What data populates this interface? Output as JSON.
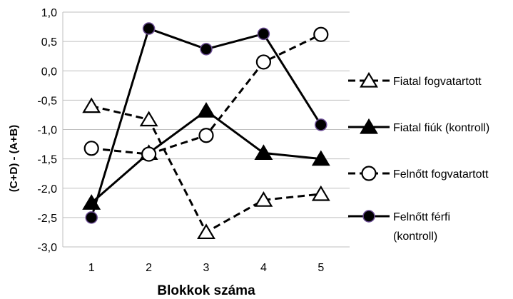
{
  "chart_data": {
    "type": "line",
    "xlabel": "Blokkok száma",
    "ylabel": "(C+D) - (A+B)",
    "x": [
      1,
      2,
      3,
      4,
      5
    ],
    "xticks": [
      "1",
      "2",
      "3",
      "4",
      "5"
    ],
    "ylim": [
      -3.0,
      1.0
    ],
    "yticks": [
      "1,0",
      "0,5",
      "0,0",
      "-0,5",
      "-1,0",
      "-1,5",
      "-2,0",
      "-2,5",
      "-3,0"
    ],
    "ytick_values": [
      1.0,
      0.5,
      0.0,
      -0.5,
      -1.0,
      -1.5,
      -2.0,
      -2.5,
      -3.0
    ],
    "grid": "horizontal",
    "legend_position": "right",
    "series": [
      {
        "name": "Fiatal fogvatartott",
        "values": [
          -0.6,
          -0.83,
          -2.75,
          -2.2,
          -2.1
        ],
        "line": "dashed",
        "marker": "open-triangle",
        "marker_fill": "#ffffff",
        "color": "#000000"
      },
      {
        "name": "Fiatal fiúk (kontroll)",
        "values": [
          -2.25,
          -1.4,
          -0.68,
          -1.4,
          -1.5
        ],
        "line": "solid",
        "marker": "filled-triangle",
        "marker_fill": "#000000",
        "color": "#000000"
      },
      {
        "name": "Felnőtt fogvatartott",
        "values": [
          -1.32,
          -1.42,
          -1.1,
          0.15,
          0.62
        ],
        "line": "dashed",
        "marker": "open-circle",
        "marker_fill": "#ffffff",
        "color": "#000000"
      },
      {
        "name": "Felnőtt férfi (kontroll)",
        "legend_lines": [
          "Felnőtt férfi",
          "(kontroll)"
        ],
        "values": [
          -2.5,
          0.72,
          0.37,
          0.63,
          -0.92
        ],
        "line": "solid",
        "marker": "filled-circle",
        "marker_fill": "#000000",
        "marker_stroke": "#6a4c93",
        "color": "#000000"
      }
    ]
  }
}
